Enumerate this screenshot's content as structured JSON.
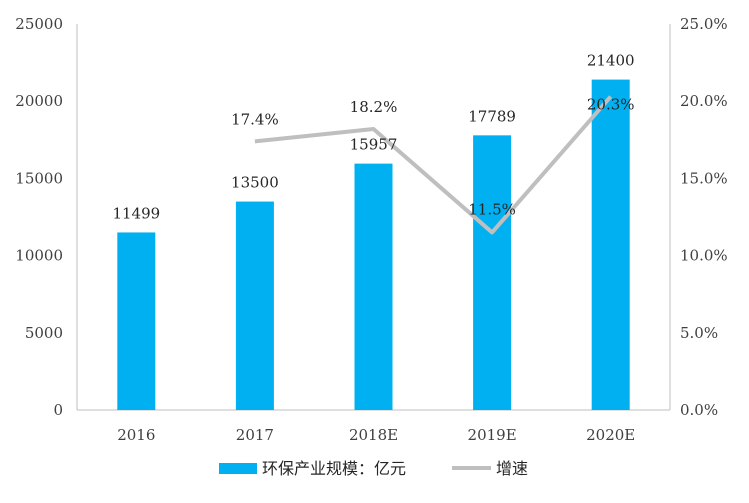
{
  "chart_data": {
    "type": "bar",
    "categories": [
      "2016",
      "2017",
      "2018E",
      "2019E",
      "2020E"
    ],
    "series": [
      {
        "name": "环保产业规模：亿元",
        "type": "bar",
        "axis": "left",
        "color": "#00b0f0",
        "values": [
          11499,
          13500,
          15957,
          17789,
          21400
        ],
        "labels": [
          "11499",
          "13500",
          "15957",
          "17789",
          "21400"
        ]
      },
      {
        "name": "增速",
        "type": "line",
        "axis": "right",
        "color": "#bfbfbf",
        "values": [
          null,
          17.4,
          18.2,
          11.5,
          20.3
        ],
        "labels": [
          "",
          "17.4%",
          "18.2%",
          "11.5%",
          "20.3%"
        ]
      }
    ],
    "y_left": {
      "ylim": [
        0,
        25000
      ],
      "ticks": [
        "0",
        "5000",
        "10000",
        "15000",
        "20000",
        "25000"
      ]
    },
    "y_right": {
      "ylim": [
        0,
        25
      ],
      "ticks": [
        "0.0%",
        "5.0%",
        "10.0%",
        "15.0%",
        "20.0%",
        "25.0%"
      ]
    },
    "grid": false,
    "legend": "bottom"
  }
}
